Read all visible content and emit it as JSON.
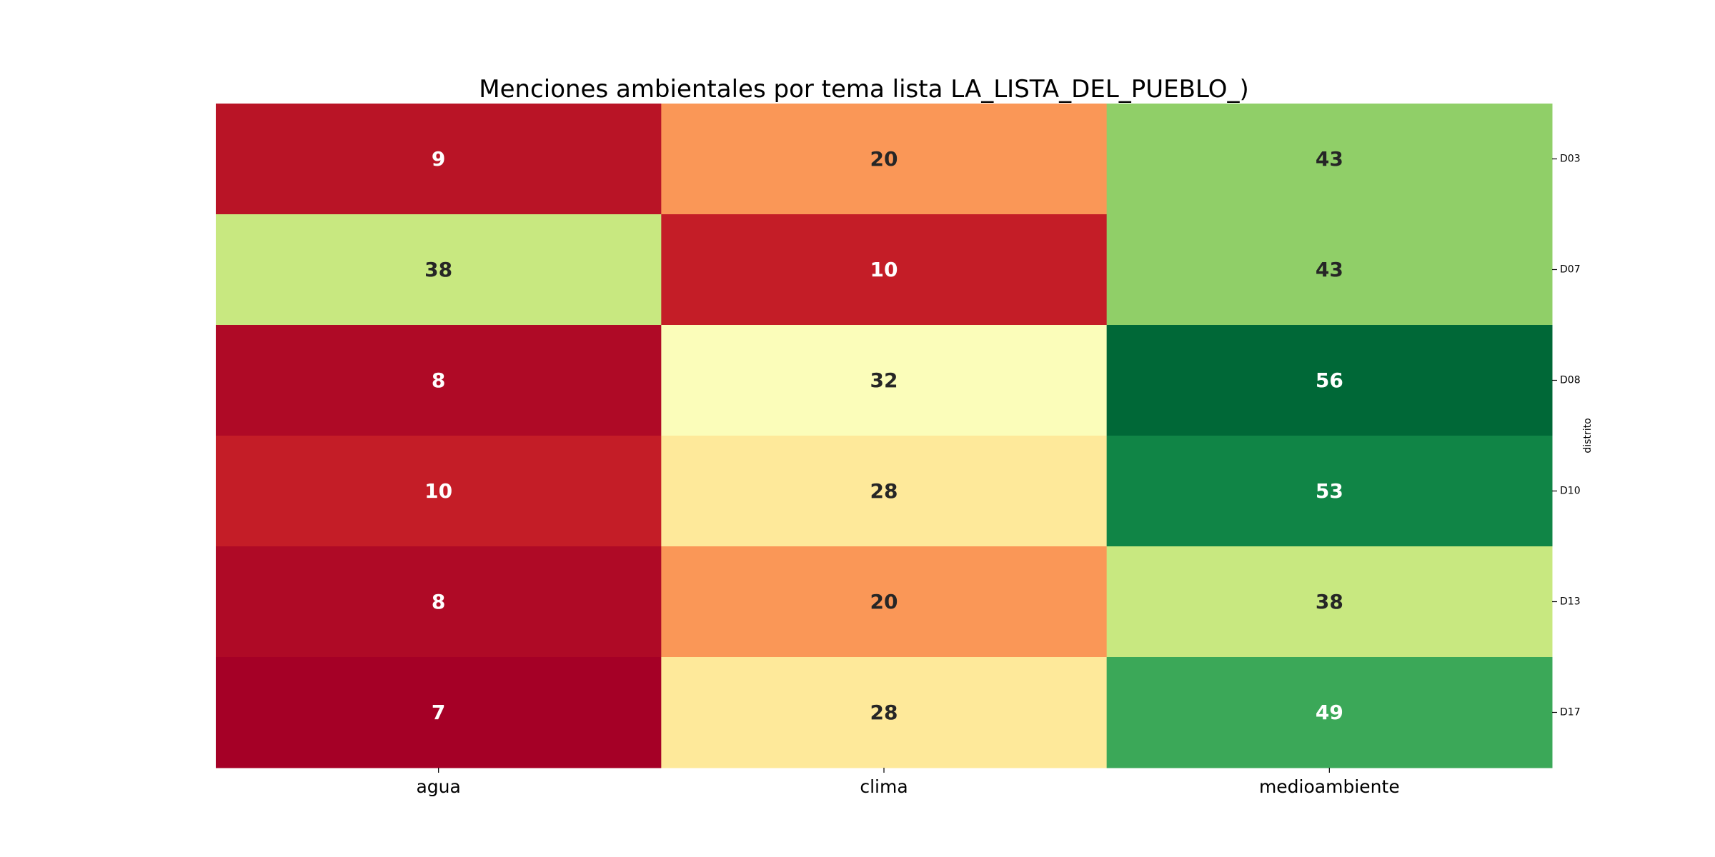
{
  "chart_data": {
    "type": "heatmap",
    "title": "Menciones ambientales por tema lista LA_LISTA_DEL_PUEBLO_)",
    "xlabel": "",
    "ylabel": "distrito",
    "x_categories": [
      "agua",
      "clima",
      "medioambiente"
    ],
    "y_categories": [
      "D03",
      "D07",
      "D08",
      "D10",
      "D13",
      "D17"
    ],
    "values": [
      [
        9,
        20,
        43
      ],
      [
        38,
        10,
        43
      ],
      [
        8,
        32,
        56
      ],
      [
        10,
        28,
        53
      ],
      [
        8,
        20,
        38
      ],
      [
        7,
        28,
        49
      ]
    ],
    "colormap": "RdYlGn",
    "vmin": 7,
    "vmax": 56,
    "annotated": true,
    "colorbar": false,
    "y_tick_side": "right"
  }
}
